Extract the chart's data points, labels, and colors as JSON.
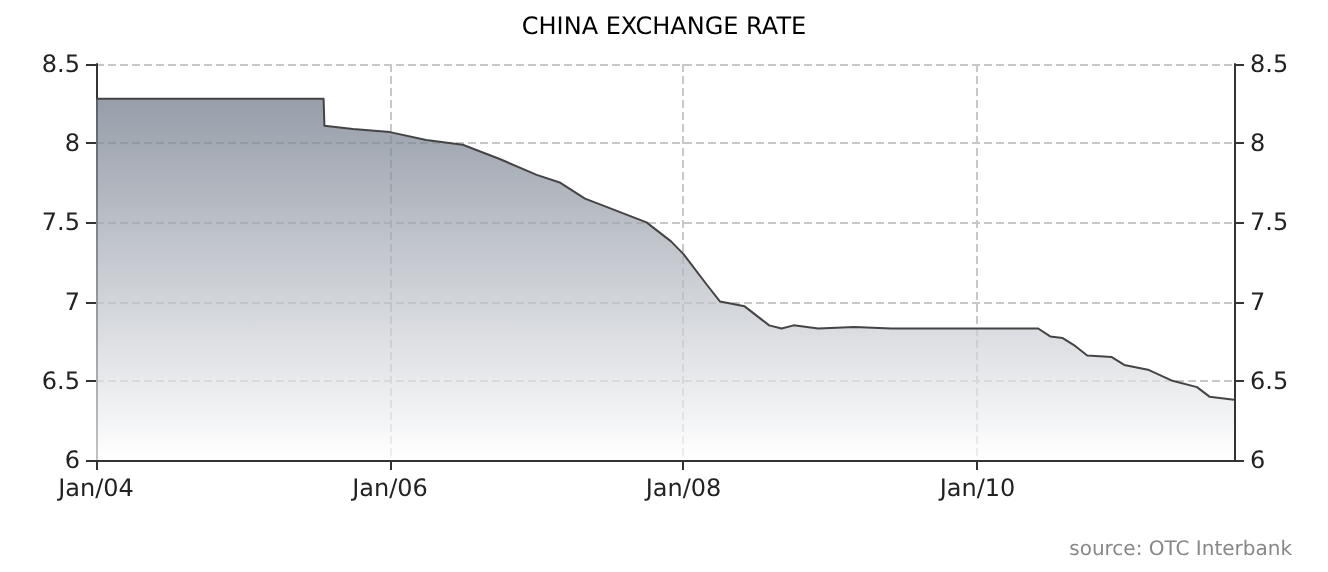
{
  "chart_data": {
    "type": "area",
    "title": "CHINA EXCHANGE RATE",
    "annotations": [
      "source: OTC Interbank"
    ],
    "x": [
      "2004-01-01",
      "2005-07-20",
      "2005-07-22",
      "2005-10-01",
      "2006-01-01",
      "2006-04-01",
      "2006-07-01",
      "2006-10-01",
      "2007-01-01",
      "2007-03-01",
      "2007-05-01",
      "2007-06-01",
      "2007-08-01",
      "2007-10-01",
      "2007-12-01",
      "2008-01-01",
      "2008-03-01",
      "2008-04-01",
      "2008-06-01",
      "2008-08-01",
      "2008-09-01",
      "2008-10-01",
      "2008-12-01",
      "2009-03-01",
      "2009-06-01",
      "2009-12-01",
      "2010-06-01",
      "2010-07-01",
      "2010-08-01",
      "2010-09-01",
      "2010-10-01",
      "2010-12-01",
      "2011-01-01",
      "2011-03-01",
      "2011-05-01",
      "2011-07-01",
      "2011-08-01",
      "2011-10-01"
    ],
    "series": [
      {
        "color": "#6b7585",
        "values": [
          8.28,
          8.28,
          8.11,
          8.09,
          8.07,
          8.02,
          7.99,
          7.9,
          7.8,
          7.75,
          7.65,
          7.62,
          7.56,
          7.5,
          7.38,
          7.3,
          7.1,
          7.0,
          6.97,
          6.85,
          6.83,
          6.85,
          6.83,
          6.84,
          6.83,
          6.83,
          6.83,
          6.78,
          6.77,
          6.72,
          6.66,
          6.65,
          6.6,
          6.57,
          6.5,
          6.46,
          6.4,
          6.38
        ]
      }
    ],
    "xlim": [
      "2004-01-01",
      "2011-10-01"
    ],
    "xticks": [
      {
        "value": "2004-01-01",
        "label": "Jan/04"
      },
      {
        "value": "2006-01-01",
        "label": "Jan/06"
      },
      {
        "value": "2008-01-01",
        "label": "Jan/08"
      },
      {
        "value": "2010-01-01",
        "label": "Jan/10"
      }
    ],
    "ylim": [
      6,
      8.5
    ],
    "yticks": [
      6,
      6.5,
      7,
      7.5,
      8,
      8.5
    ],
    "y2lim": [
      6,
      8.5
    ],
    "y2ticks": [
      6,
      6.5,
      7,
      7.5,
      8,
      8.5
    ],
    "grid": true
  }
}
